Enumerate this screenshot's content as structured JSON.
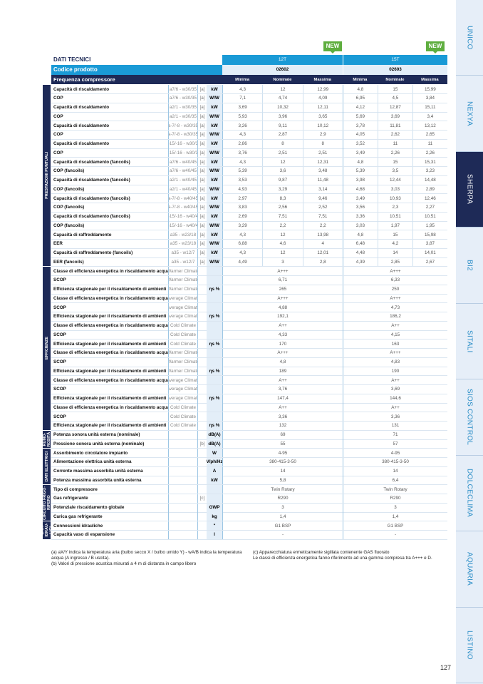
{
  "side_tabs": [
    "UNICO",
    "NEXYA",
    "SHERPA",
    "BI2",
    "SITALI",
    "SIOS CONTROL",
    "DOLCECLIMA",
    "AQUARIA",
    "LISTINO"
  ],
  "active_tab": "SHERPA",
  "badge": "NEW",
  "header": {
    "title": "DATI TECNICI",
    "models": [
      "12T",
      "15T"
    ],
    "code_label": "Codice prodotto",
    "codes": [
      "02602",
      "02603"
    ],
    "freq_label": "Frequenza compressore",
    "freq": [
      "Minima",
      "Nominale",
      "Massima"
    ]
  },
  "sections": [
    {
      "label": "PRESTAZIONI PUNTUALI",
      "rows": [
        [
          "Capacità di riscaldamento",
          "a7/6 - w30/35",
          "[a]",
          "kW",
          "4,3",
          "12",
          "12,99",
          "4,8",
          "15",
          "15,99"
        ],
        [
          "COP",
          "a7/6 - w30/35",
          "[a]",
          "W/W",
          "7,1",
          "4,74",
          "4,09",
          "6,95",
          "4,5",
          "3,84"
        ],
        [
          "Capacità di riscaldamento",
          "a2/1 - w30/35",
          "[a]",
          "kW",
          "3,69",
          "10,32",
          "12,11",
          "4,12",
          "12,87",
          "15,11"
        ],
        [
          "COP",
          "a2/1 - w30/35",
          "[a]",
          "W/W",
          "5,93",
          "3,96",
          "3,65",
          "5,69",
          "3,69",
          "3,4"
        ],
        [
          "Capacità di riscaldamento",
          "a-7/-8 - w30/35",
          "[a]",
          "kW",
          "3,26",
          "9,11",
          "10,12",
          "3,78",
          "11,81",
          "13,12"
        ],
        [
          "COP",
          "a-7/-8 - w30/35",
          "[a]",
          "W/W",
          "4,3",
          "2,87",
          "2,9",
          "4,05",
          "2,62",
          "2,65"
        ],
        [
          "Capacità di riscaldamento",
          "a-15/-16 - w30/35",
          "[a]",
          "kW",
          "2,86",
          "8",
          "8",
          "3,52",
          "11",
          "11"
        ],
        [
          "COP",
          "a-15/-16 - w30/35",
          "[a]",
          "W/W",
          "3,76",
          "2,51",
          "2,51",
          "3,49",
          "2,26",
          "2,26"
        ],
        [
          "Capacità di riscaldamento (fancoils)",
          "a7/6 - w40/45",
          "[a]",
          "kW",
          "4,3",
          "12",
          "12,31",
          "4,8",
          "15",
          "15,31"
        ],
        [
          "COP (fancoils)",
          "a7/6 - w40/45",
          "[a]",
          "W/W",
          "5,39",
          "3,6",
          "3,48",
          "5,39",
          "3,5",
          "3,23"
        ],
        [
          "Capacità di riscaldamento (fancoils)",
          "a2/1 - w40/45",
          "[a]",
          "kW",
          "3,53",
          "9,87",
          "11,48",
          "3,98",
          "12,44",
          "14,48"
        ],
        [
          "COP (fancoils)",
          "a2/1 - w40/45",
          "[a]",
          "W/W",
          "4,93",
          "3,29",
          "3,14",
          "4,68",
          "3,03",
          "2,89"
        ],
        [
          "Capacità di riscaldamento (fancoils)",
          "a-7/-8 - w40/45",
          "[a]",
          "kW",
          "2,97",
          "8,3",
          "9,46",
          "3,49",
          "10,93",
          "12,46"
        ],
        [
          "COP (fancoils)",
          "a-7/-8 - w40/45",
          "[a]",
          "W/W",
          "3,83",
          "2,56",
          "2,52",
          "3,56",
          "2,3",
          "2,27"
        ],
        [
          "Capacità di riscaldamento (fancoils)",
          "a-15/-16 - w40/45",
          "[a]",
          "kW",
          "2,69",
          "7,51",
          "7,51",
          "3,36",
          "10,51",
          "10,51"
        ],
        [
          "COP (fancoils)",
          "a-15/-16 - w40/45",
          "[a]",
          "W/W",
          "3,29",
          "2,2",
          "2,2",
          "3,03",
          "1,97",
          "1,95"
        ],
        [
          "Capacità di raffreddamento",
          "a35 - w23/18",
          "[a]",
          "kW",
          "4,3",
          "12",
          "13,98",
          "4,8",
          "15",
          "15,98"
        ],
        [
          "EER",
          "a35 - w23/18",
          "[a]",
          "W/W",
          "6,88",
          "4,6",
          "4",
          "6,48",
          "4,2",
          "3,87"
        ],
        [
          "Capacità di raffreddamento (fancoils)",
          "a35 - w12/7",
          "[a]",
          "kW",
          "4,3",
          "12",
          "12,01",
          "4,48",
          "14",
          "14,01"
        ],
        [
          "EER (fancoils)",
          "a35 - w12/7",
          "[a]",
          "W/W",
          "4,49",
          "3",
          "2,8",
          "4,39",
          "2,85",
          "2,67"
        ]
      ]
    },
    {
      "label": "EFFICIENZE",
      "rows": [
        [
          "Classe di efficienza energetica in riscaldamento acqua 35°C",
          "Warmer Climate",
          "",
          "",
          "A+++",
          "A+++"
        ],
        [
          "SCOP",
          "Warmer Climate",
          "",
          "",
          "6,71",
          "6,33"
        ],
        [
          "Efficienza stagionale per il riscaldamento di ambienti",
          "Warmer Climate",
          "",
          "ηs %",
          "265",
          "250"
        ],
        [
          "Classe di efficienza energetica in riscaldamento acqua 35°C",
          "Average Climate",
          "",
          "",
          "A+++",
          "A+++"
        ],
        [
          "SCOP",
          "Average Climate",
          "",
          "",
          "4,88",
          "4,73"
        ],
        [
          "Efficienza stagionale per il riscaldamento di ambienti",
          "Average Climate",
          "",
          "ηs %",
          "192,1",
          "186,2"
        ],
        [
          "Classe di efficienza energetica in riscaldamento acqua 35°C",
          "Cold Climate",
          "",
          "",
          "A++",
          "A++"
        ],
        [
          "SCOP",
          "Cold Climate",
          "",
          "",
          "4,33",
          "4,15"
        ],
        [
          "Efficienza stagionale per il riscaldamento di ambienti",
          "Cold Climate",
          "",
          "ηs %",
          "170",
          "163"
        ],
        [
          "Classe di efficienza energetica in riscaldamento acqua 55°C",
          "Warmer Climate",
          "",
          "",
          "A+++",
          "A+++"
        ],
        [
          "SCOP",
          "Warmer Climate",
          "",
          "",
          "4,8",
          "4,83"
        ],
        [
          "Efficienza stagionale per il riscaldamento di ambienti",
          "Warmer Climate",
          "",
          "ηs %",
          "189",
          "190"
        ],
        [
          "Classe di efficienza energetica in riscaldamento acqua 55°C",
          "Average Climate",
          "",
          "",
          "A++",
          "A++"
        ],
        [
          "SCOP",
          "Average Climate",
          "",
          "",
          "3,76",
          "3,69"
        ],
        [
          "Efficienza stagionale per il riscaldamento di ambienti",
          "Average Climate",
          "",
          "ηs %",
          "147,4",
          "144,6"
        ],
        [
          "Classe di efficienza energetica in riscaldamento acqua 55°C",
          "Cold Climate",
          "",
          "",
          "A++",
          "A++"
        ],
        [
          "SCOP",
          "Cold Climate",
          "",
          "",
          "3,36",
          "3,36"
        ],
        [
          "Efficienza stagionale per il riscaldamento di ambienti",
          "Cold Climate",
          "",
          "ηs %",
          "132",
          "131"
        ]
      ]
    },
    {
      "label": "RUMO-ROSITÀ",
      "rows": [
        [
          "Potenza sonora unità esterna (nominale)",
          "",
          "",
          "dB(A)",
          "69",
          "71"
        ],
        [
          "Pressione sonora unità esterna (nominale)",
          "",
          "[b]",
          "dB(A)",
          "55",
          "57"
        ]
      ]
    },
    {
      "label": "DATI ELETTRICI",
      "rows": [
        [
          "Assorbimento circolatore impianto",
          "",
          "",
          "W",
          "4-95",
          "4-95"
        ],
        [
          "Alimentazione elettrica unità esterna",
          "",
          "",
          "V/ph/Hz",
          "380-415-3-50",
          "380-415-3-50"
        ],
        [
          "Corrente massima assorbita unità esterna",
          "",
          "",
          "A",
          "14",
          "14"
        ],
        [
          "Potenza massima assorbita unità esterna",
          "",
          "",
          "kW",
          "5,8",
          "6,4"
        ]
      ]
    },
    {
      "label": "CIRCUITO FRIGO-RIFERO",
      "rows": [
        [
          "Tipo di compressore",
          "",
          "",
          "",
          "Twin Rotary",
          "Twin Rotary"
        ],
        [
          "Gas refrigerante",
          "",
          "[c]",
          "",
          "R290",
          "R290"
        ],
        [
          "Potenziale riscaldamento globale",
          "",
          "",
          "GWP",
          "3",
          "3"
        ],
        [
          "Carica gas refrigerante",
          "",
          "",
          "kg",
          "1,4",
          "1,4"
        ]
      ]
    },
    {
      "label": "DATI IDRAU-LICI",
      "rows": [
        [
          "Connessioni idrauliche",
          "",
          "",
          "\"",
          "G1 BSP",
          "G1 BSP"
        ],
        [
          "Capacità vaso di espansione",
          "",
          "",
          "l",
          "-",
          "-"
        ]
      ]
    }
  ],
  "notes_left": [
    "(a) aX/Y indica la temperatura aria (bulbo secco X / bulbo umido Y) - wA/B indica la temperatura acqua (A ingresso / B uscita).",
    "(b) Valori di pressione acustica misurati a 4 m di distanza in campo libero"
  ],
  "notes_right": [
    "(c) Apparecchiatura ermeticamente sigillata contenente GAS fluorato",
    "Le classi di efficienza energetica fanno riferimento ad una gamma compresa tra A+++ e D."
  ],
  "page_number": "127",
  "colors": {
    "blue": "#1a9ad6",
    "navy": "#1e2a57",
    "light": "#e3eef8",
    "new": "#5fae3f"
  }
}
